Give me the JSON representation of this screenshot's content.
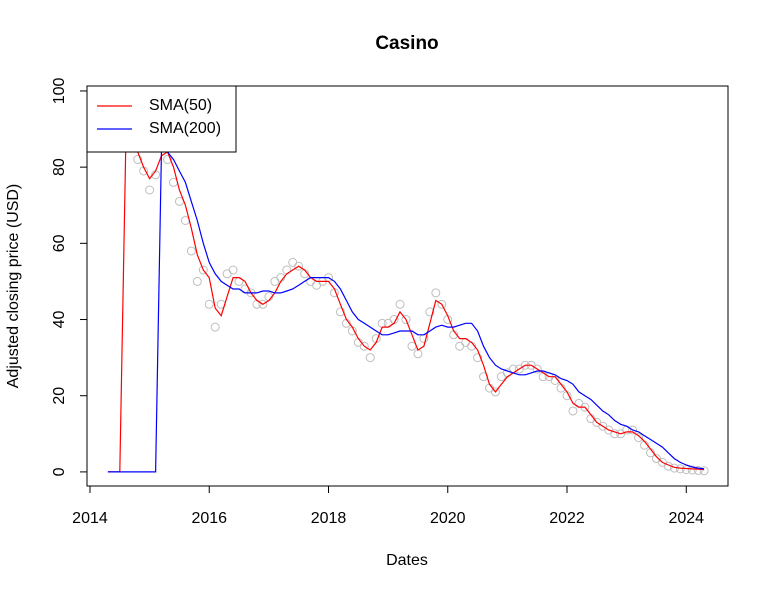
{
  "chart_data": {
    "type": "line",
    "title": "Casino",
    "xlabel": "Dates",
    "ylabel": "Adjusted closing price (USD)",
    "x": [
      2014.3,
      2014.4,
      2014.5,
      2014.6,
      2014.7,
      2014.8,
      2014.9,
      2015.0,
      2015.1,
      2015.2,
      2015.3,
      2015.4,
      2015.5,
      2015.6,
      2015.7,
      2015.8,
      2015.9,
      2016.0,
      2016.1,
      2016.2,
      2016.3,
      2016.4,
      2016.5,
      2016.6,
      2016.7,
      2016.8,
      2016.9,
      2017.0,
      2017.1,
      2017.2,
      2017.3,
      2017.4,
      2017.5,
      2017.6,
      2017.7,
      2017.8,
      2017.9,
      2018.0,
      2018.1,
      2018.2,
      2018.3,
      2018.4,
      2018.5,
      2018.6,
      2018.7,
      2018.8,
      2018.9,
      2019.0,
      2019.1,
      2019.2,
      2019.3,
      2019.4,
      2019.5,
      2019.6,
      2019.7,
      2019.8,
      2019.9,
      2020.0,
      2020.1,
      2020.2,
      2020.3,
      2020.4,
      2020.5,
      2020.6,
      2020.7,
      2020.8,
      2020.9,
      2021.0,
      2021.1,
      2021.2,
      2021.3,
      2021.4,
      2021.5,
      2021.6,
      2021.7,
      2021.8,
      2021.9,
      2022.0,
      2022.1,
      2022.2,
      2022.3,
      2022.4,
      2022.5,
      2022.6,
      2022.7,
      2022.8,
      2022.9,
      2023.0,
      2023.1,
      2023.2,
      2023.3,
      2023.4,
      2023.5,
      2023.6,
      2023.7,
      2023.8,
      2023.9,
      2024.0,
      2024.1,
      2024.2,
      2024.3
    ],
    "series": [
      {
        "type": "scatter",
        "color": "#bebebe",
        "values": [
          null,
          null,
          null,
          null,
          86,
          82,
          79,
          74,
          78,
          85,
          82,
          76,
          71,
          66,
          58,
          50,
          53,
          44,
          38,
          44,
          52,
          53,
          50,
          48,
          47,
          44,
          44,
          46,
          50,
          51,
          53,
          55,
          54,
          52,
          50,
          49,
          50,
          51,
          47,
          42,
          39,
          37,
          34,
          33,
          30,
          35,
          39,
          39,
          40,
          44,
          40,
          33,
          31,
          35,
          42,
          47,
          44,
          40,
          36,
          33,
          34,
          33,
          30,
          25,
          22,
          21,
          25,
          26,
          27,
          27,
          28,
          28,
          27,
          25,
          25,
          24,
          22,
          20,
          16,
          18,
          17,
          14,
          13,
          12,
          11,
          10,
          10,
          11,
          11,
          9,
          7,
          5,
          3.5,
          2.5,
          1.5,
          1,
          0.8,
          0.6,
          0.5,
          0.4,
          0.3
        ]
      },
      {
        "name": "SMA(50)",
        "type": "line",
        "color": "#ff0000",
        "values": [
          0,
          0,
          0,
          86,
          86,
          84,
          80,
          77,
          79,
          83,
          84,
          80,
          74,
          70,
          64,
          57,
          53,
          51,
          43,
          41,
          46,
          51,
          51,
          50,
          47,
          45,
          44,
          45,
          47,
          50,
          52,
          53,
          54,
          53,
          51,
          50,
          50,
          50,
          48,
          44,
          40,
          38,
          35,
          33,
          32,
          34,
          38,
          38,
          39,
          42,
          40,
          36,
          32,
          33,
          39,
          45,
          44,
          41,
          37,
          35,
          35,
          34,
          32,
          28,
          23,
          21,
          23,
          25,
          26,
          27,
          28,
          28,
          27,
          26,
          25,
          25,
          23,
          21,
          18,
          17,
          17,
          15,
          13,
          12,
          11,
          10.5,
          10,
          10.5,
          10.5,
          9.5,
          8,
          6,
          4,
          2.5,
          1.8,
          1.2,
          1,
          0.9,
          0.8,
          0.7,
          0.6
        ]
      },
      {
        "name": "SMA(200)",
        "type": "line",
        "color": "#0000ff",
        "values": [
          0,
          0,
          0,
          0,
          0,
          0,
          0,
          0,
          0,
          85,
          84,
          82,
          79,
          76,
          71,
          66,
          60,
          55,
          52,
          50,
          49,
          48,
          48,
          47,
          47,
          47,
          47.5,
          47.5,
          47,
          47,
          47.5,
          48,
          49,
          50,
          51,
          51,
          51,
          51,
          50,
          48,
          45,
          42,
          40,
          39,
          38,
          37,
          36,
          36,
          36.5,
          37,
          37,
          37,
          36,
          36,
          37,
          38,
          38.5,
          38,
          38,
          38.5,
          39,
          39,
          37,
          33,
          30,
          28,
          27,
          26.5,
          26,
          25.5,
          25.5,
          26,
          26.5,
          26.5,
          26,
          25.5,
          24.5,
          24,
          23,
          21,
          20,
          19,
          17.5,
          16,
          15,
          13.5,
          12.5,
          12,
          11,
          10.5,
          9.5,
          8.5,
          7.5,
          6.5,
          5,
          3.5,
          2.5,
          1.8,
          1.3,
          1,
          0.8
        ]
      }
    ],
    "xlim": [
      2013.95,
      2024.7
    ],
    "xticks": [
      2014,
      2016,
      2018,
      2020,
      2022,
      2024
    ],
    "ylim": [
      -3.7,
      101.3
    ],
    "yticks": [
      0,
      20,
      40,
      60,
      80,
      100
    ],
    "legend": "top-left"
  }
}
